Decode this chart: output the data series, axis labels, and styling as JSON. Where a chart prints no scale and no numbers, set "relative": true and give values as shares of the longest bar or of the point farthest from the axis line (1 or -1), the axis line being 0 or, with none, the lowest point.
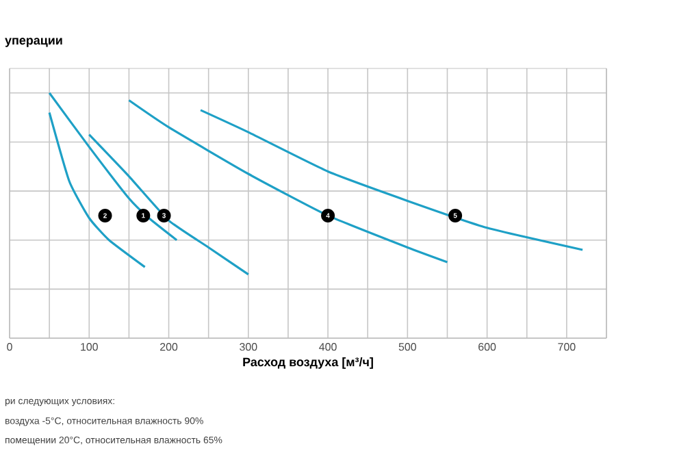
{
  "chart_data": {
    "type": "line",
    "title": "уперации",
    "xlabel": "Расход воздуха [м³/ч]",
    "relative": true,
    "grid": true,
    "xlim": [
      0,
      750
    ],
    "xticks": [
      0,
      {
        "value": 50,
        "label": null
      },
      100,
      {
        "value": 150,
        "label": null
      },
      200,
      {
        "value": 250,
        "label": null
      },
      300,
      {
        "value": 350,
        "label": null
      },
      400,
      {
        "value": 450,
        "label": null
      },
      500,
      {
        "value": 550,
        "label": null
      },
      600,
      {
        "value": 650,
        "label": null
      },
      700,
      {
        "value": 750,
        "label": null
      }
    ],
    "series": [
      {
        "color": "#1ea0c6",
        "x": [
          50,
          100,
          150,
          175,
          210
        ],
        "values": [
          1.0,
          0.78,
          0.57,
          0.49,
          0.4
        ]
      },
      {
        "color": "#1ea0c6",
        "x": [
          50,
          75,
          100,
          125,
          170
        ],
        "values": [
          0.92,
          0.64,
          0.49,
          0.4,
          0.29
        ]
      },
      {
        "color": "#1ea0c6",
        "x": [
          100,
          150,
          200,
          250,
          300
        ],
        "values": [
          0.83,
          0.66,
          0.48,
          0.37,
          0.26
        ]
      },
      {
        "color": "#1ea0c6",
        "x": [
          150,
          200,
          300,
          400,
          500,
          550
        ],
        "values": [
          0.97,
          0.86,
          0.67,
          0.5,
          0.37,
          0.31
        ]
      },
      {
        "color": "#1ea0c6",
        "x": [
          240,
          300,
          400,
          500,
          600,
          720
        ],
        "values": [
          0.93,
          0.84,
          0.68,
          0.56,
          0.45,
          0.36
        ]
      }
    ],
    "annotations": [
      {
        "text": "2",
        "x": 120,
        "y": 0.5
      },
      {
        "text": "1",
        "x": 168,
        "y": 0.5
      },
      {
        "text": "3",
        "x": 194,
        "y": 0.5
      },
      {
        "text": "4",
        "x": 400,
        "y": 0.5
      },
      {
        "text": "5",
        "x": 560,
        "y": 0.5
      },
      "ри следующих условиях:",
      "воздуха -5°C, относительная влажность 90%",
      "помещении 20°C, относительная влажность 65%"
    ]
  }
}
